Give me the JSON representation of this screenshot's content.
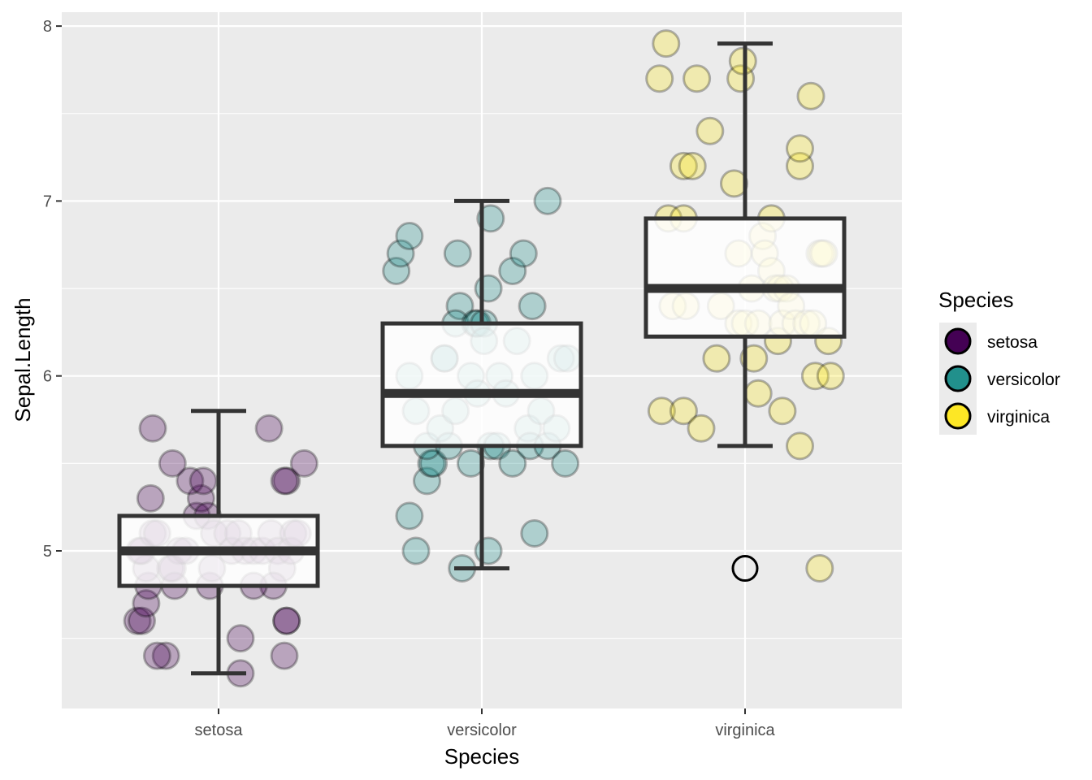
{
  "chart_data": {
    "type": "boxplot",
    "xlabel": "Species",
    "ylabel": "Sepal.Length",
    "categories": [
      "setosa",
      "versicolor",
      "virginica"
    ],
    "ylim": [
      4.13,
      8.1
    ],
    "y_ticks": [
      5,
      6,
      7,
      8
    ],
    "grid": true,
    "legend": {
      "title": "Species",
      "position": "right",
      "entries": [
        {
          "label": "setosa",
          "color": "#440154"
        },
        {
          "label": "versicolor",
          "color": "#21908C"
        },
        {
          "label": "virginica",
          "color": "#FDE725"
        }
      ]
    },
    "boxes": [
      {
        "category": "setosa",
        "q1": 4.8,
        "median": 5.0,
        "q3": 5.2,
        "whisker_low": 4.3,
        "whisker_high": 5.8,
        "outliers": []
      },
      {
        "category": "versicolor",
        "q1": 5.6,
        "median": 5.9,
        "q3": 6.3,
        "whisker_low": 4.9,
        "whisker_high": 7.0,
        "outliers": []
      },
      {
        "category": "virginica",
        "q1": 6.225,
        "median": 6.5,
        "q3": 6.9,
        "whisker_low": 5.6,
        "whisker_high": 7.9,
        "outliers": [
          4.9
        ]
      }
    ],
    "points": {
      "setosa": [
        [
          -0.37,
          4.6
        ],
        [
          -0.35,
          4.6
        ],
        [
          -0.33,
          4.7
        ],
        [
          -0.32,
          4.8
        ],
        [
          -0.33,
          4.9
        ],
        [
          -0.36,
          5.0
        ],
        [
          -0.35,
          5.0
        ],
        [
          -0.3,
          5.1
        ],
        [
          -0.28,
          5.1
        ],
        [
          -0.22,
          4.9
        ],
        [
          -0.18,
          5.0
        ],
        [
          -0.2,
          4.8
        ],
        [
          -0.24,
          4.4
        ],
        [
          -0.28,
          4.4
        ],
        [
          -0.21,
          4.9
        ],
        [
          -0.15,
          5.0
        ],
        [
          -0.1,
          5.2
        ],
        [
          -0.08,
          5.3
        ],
        [
          -0.13,
          5.4
        ],
        [
          -0.07,
          5.4
        ],
        [
          -0.05,
          5.2
        ],
        [
          -0.02,
          5.1
        ],
        [
          -0.04,
          4.8
        ],
        [
          -0.03,
          4.9
        ],
        [
          0.04,
          5.1
        ],
        [
          0.06,
          5.0
        ],
        [
          0.09,
          5.1
        ],
        [
          0.12,
          5.0
        ],
        [
          0.16,
          5.0
        ],
        [
          0.2,
          5.0
        ],
        [
          0.24,
          5.1
        ],
        [
          0.27,
          5.0
        ],
        [
          0.29,
          4.9
        ],
        [
          0.33,
          5.0
        ],
        [
          0.34,
          5.1
        ],
        [
          0.36,
          5.1
        ],
        [
          0.31,
          5.4
        ],
        [
          0.3,
          5.4
        ],
        [
          0.31,
          4.6
        ],
        [
          0.31,
          4.6
        ],
        [
          0.3,
          4.4
        ],
        [
          0.25,
          4.8
        ],
        [
          0.16,
          4.8
        ],
        [
          0.1,
          4.5
        ],
        [
          0.1,
          4.3
        ],
        [
          0.23,
          5.7
        ],
        [
          0.39,
          5.5
        ],
        [
          -0.31,
          5.3
        ],
        [
          -0.3,
          5.7
        ],
        [
          -0.21,
          5.5
        ]
      ],
      "versicolor": [
        [
          -0.39,
          6.6
        ],
        [
          -0.37,
          6.7
        ],
        [
          -0.33,
          6.8
        ],
        [
          -0.33,
          5.2
        ],
        [
          -0.3,
          5.0
        ],
        [
          -0.3,
          5.8
        ],
        [
          -0.33,
          6.0
        ],
        [
          -0.25,
          5.4
        ],
        [
          -0.23,
          5.5
        ],
        [
          -0.22,
          5.5
        ],
        [
          -0.25,
          5.6
        ],
        [
          -0.19,
          5.7
        ],
        [
          -0.17,
          6.1
        ],
        [
          -0.17,
          6.1
        ],
        [
          -0.15,
          5.6
        ],
        [
          -0.12,
          5.8
        ],
        [
          -0.1,
          6.4
        ],
        [
          -0.12,
          6.3
        ],
        [
          -0.11,
          6.7
        ],
        [
          -0.05,
          5.5
        ],
        [
          -0.05,
          6.0
        ],
        [
          -0.03,
          6.3
        ],
        [
          -0.02,
          6.3
        ],
        [
          0.01,
          6.3
        ],
        [
          0.01,
          6.2
        ],
        [
          0.03,
          6.5
        ],
        [
          0.04,
          6.9
        ],
        [
          -0.02,
          5.9
        ],
        [
          0.04,
          5.6
        ],
        [
          0.07,
          5.6
        ],
        [
          0.08,
          6.0
        ],
        [
          0.11,
          5.9
        ],
        [
          0.14,
          5.5
        ],
        [
          0.16,
          6.2
        ],
        [
          0.14,
          6.6
        ],
        [
          0.19,
          6.7
        ],
        [
          0.21,
          5.7
        ],
        [
          0.22,
          5.6
        ],
        [
          0.24,
          6.0
        ],
        [
          0.23,
          6.4
        ],
        [
          0.27,
          5.8
        ],
        [
          0.3,
          5.6
        ],
        [
          0.34,
          5.7
        ],
        [
          0.36,
          6.1
        ],
        [
          0.39,
          6.1
        ],
        [
          0.38,
          5.5
        ],
        [
          0.24,
          5.1
        ],
        [
          0.3,
          7.0
        ],
        [
          0.03,
          5.0
        ],
        [
          -0.09,
          4.9
        ]
      ],
      "virginica": [
        [
          -0.39,
          7.7
        ],
        [
          -0.36,
          7.9
        ],
        [
          -0.38,
          5.8
        ],
        [
          -0.35,
          6.9
        ],
        [
          -0.33,
          6.4
        ],
        [
          -0.28,
          6.9
        ],
        [
          -0.28,
          5.8
        ],
        [
          -0.28,
          7.2
        ],
        [
          -0.27,
          6.4
        ],
        [
          -0.24,
          7.2
        ],
        [
          -0.2,
          5.7
        ],
        [
          -0.22,
          7.7
        ],
        [
          -0.16,
          7.4
        ],
        [
          -0.13,
          6.1
        ],
        [
          -0.11,
          6.4
        ],
        [
          -0.05,
          7.1
        ],
        [
          -0.03,
          6.7
        ],
        [
          -0.02,
          7.7
        ],
        [
          -0.03,
          6.3
        ],
        [
          -0.01,
          7.8
        ],
        [
          0.0,
          6.3
        ],
        [
          0.03,
          6.5
        ],
        [
          0.04,
          6.1
        ],
        [
          0.06,
          6.3
        ],
        [
          0.06,
          5.9
        ],
        [
          0.08,
          6.8
        ],
        [
          0.09,
          6.7
        ],
        [
          0.12,
          6.9
        ],
        [
          0.12,
          6.6
        ],
        [
          0.14,
          6.5
        ],
        [
          0.15,
          6.2
        ],
        [
          0.17,
          6.3
        ],
        [
          0.16,
          6.5
        ],
        [
          0.17,
          5.8
        ],
        [
          0.19,
          6.5
        ],
        [
          0.21,
          6.4
        ],
        [
          0.23,
          6.3
        ],
        [
          0.25,
          7.2
        ],
        [
          0.25,
          5.6
        ],
        [
          0.25,
          7.3
        ],
        [
          0.28,
          6.3
        ],
        [
          0.3,
          7.6
        ],
        [
          0.31,
          6.3
        ],
        [
          0.32,
          6.0
        ],
        [
          0.34,
          6.7
        ],
        [
          0.35,
          6.7
        ],
        [
          0.36,
          6.7
        ],
        [
          0.38,
          6.2
        ],
        [
          0.39,
          6.0
        ],
        [
          0.34,
          4.9
        ]
      ]
    }
  }
}
